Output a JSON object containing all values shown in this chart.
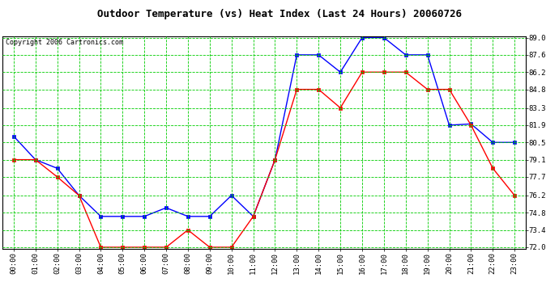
{
  "title": "Outdoor Temperature (vs) Heat Index (Last 24 Hours) 20060726",
  "copyright_text": "Copyright 2006 Cartronics.com",
  "x_labels": [
    "00:00",
    "01:00",
    "02:00",
    "03:00",
    "04:00",
    "05:00",
    "06:00",
    "07:00",
    "08:00",
    "09:00",
    "10:00",
    "11:00",
    "12:00",
    "13:00",
    "14:00",
    "15:00",
    "16:00",
    "17:00",
    "18:00",
    "19:00",
    "20:00",
    "21:00",
    "22:00",
    "23:00"
  ],
  "blue_data": [
    81.0,
    79.1,
    78.4,
    76.2,
    74.5,
    74.5,
    74.5,
    75.2,
    74.5,
    74.5,
    76.2,
    74.5,
    79.1,
    87.6,
    87.6,
    86.2,
    89.0,
    89.0,
    87.6,
    87.6,
    81.9,
    82.0,
    80.5,
    80.5
  ],
  "red_data": [
    79.1,
    79.1,
    77.7,
    76.2,
    72.0,
    72.0,
    72.0,
    72.0,
    73.4,
    72.0,
    72.0,
    74.5,
    79.1,
    84.8,
    84.8,
    83.3,
    86.2,
    86.2,
    86.2,
    84.8,
    84.8,
    81.9,
    78.4,
    76.2
  ],
  "ylim": [
    72.0,
    89.0
  ],
  "yticks": [
    72.0,
    73.4,
    74.8,
    76.2,
    77.7,
    79.1,
    80.5,
    81.9,
    83.3,
    84.8,
    86.2,
    87.6,
    89.0
  ],
  "blue_color": "#0000FF",
  "red_color": "#FF0000",
  "bg_color": "#FFFFFF",
  "plot_bg_color": "#FFFFFF",
  "grid_color": "#00CC00",
  "title_fontsize": 9,
  "copyright_fontsize": 6,
  "tick_fontsize": 6.5,
  "marker_size": 2.5,
  "line_width": 1.0
}
